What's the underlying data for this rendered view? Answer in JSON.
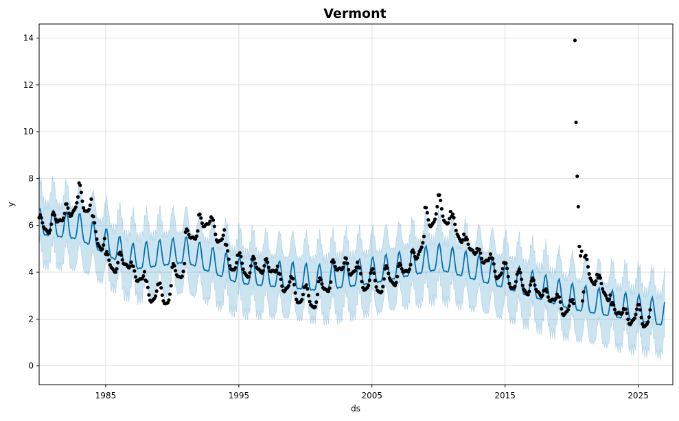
{
  "chart_data": {
    "type": "line",
    "title": "Vermont",
    "xlabel": "ds",
    "ylabel": "y",
    "xlim": [
      1980.0,
      2027.6
    ],
    "ylim": [
      -0.8,
      14.6
    ],
    "grid": true,
    "x_ticks": [
      1985,
      1995,
      2005,
      2015,
      2025
    ],
    "y_ticks": [
      0,
      2,
      4,
      6,
      8,
      10,
      12,
      14
    ],
    "colors": {
      "forecast": "#0072B2",
      "uncertainty": "#0072B2",
      "observed": "#000000",
      "grid": "#dddddd"
    },
    "forecast_model": {
      "start": 1980.0,
      "end": 2027.0,
      "step": 0.0833,
      "trend_knots": [
        [
          1980.0,
          6.0
        ],
        [
          1983.0,
          5.8
        ],
        [
          1987.0,
          4.5
        ],
        [
          1991.0,
          4.8
        ],
        [
          1995.0,
          3.9
        ],
        [
          2001.0,
          3.6
        ],
        [
          2005.0,
          3.9
        ],
        [
          2010.0,
          4.5
        ],
        [
          2015.0,
          3.7
        ],
        [
          2020.0,
          2.8
        ],
        [
          2027.0,
          2.1
        ]
      ],
      "seasonal_amplitude": 0.55,
      "interval_half_width": 1.3
    },
    "observed": {
      "start": 1980.0,
      "step": 0.0833,
      "yearly_means": [
        5.9,
        6.2,
        6.6,
        7.3,
        5.8,
        4.3,
        4.5,
        4.0,
        3.2,
        2.9,
        3.7,
        5.4,
        6.2,
        5.9,
        4.6,
        4.2,
        4.2,
        4.3,
        3.6,
        3.2,
        2.8,
        3.2,
        4.2,
        4.3,
        3.7,
        3.5,
        3.7,
        4.0,
        4.6,
        6.3,
        6.7,
        5.9,
        5.1,
        4.7,
        4.2,
        3.8,
        3.5,
        3.3,
        3.0,
        2.6,
        2.2,
        4.1,
        3.4,
        2.4,
        2.1,
        2.1
      ],
      "seasonal_amplitude": 0.35,
      "outliers": [
        [
          2020.25,
          13.9
        ],
        [
          2020.33,
          10.4
        ],
        [
          2020.42,
          8.1
        ],
        [
          2020.5,
          6.8
        ],
        [
          2020.58,
          5.1
        ],
        [
          2020.67,
          4.7
        ],
        [
          2020.75,
          4.9
        ]
      ]
    }
  }
}
